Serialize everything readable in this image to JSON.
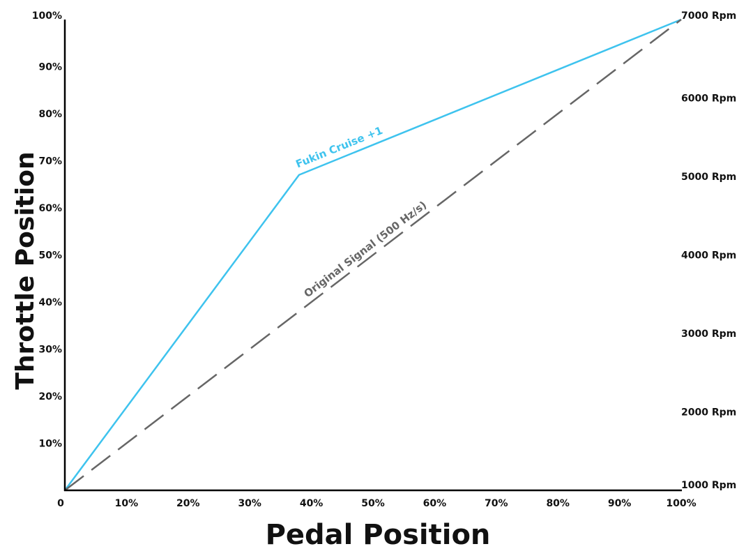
{
  "chart_data": {
    "type": "line",
    "title": "",
    "xlabel": "Pedal Position",
    "ylabel": "Throttle Position",
    "xlim": [
      0,
      100
    ],
    "ylim": [
      0,
      100
    ],
    "y2lim": [
      1000,
      7000
    ],
    "grid": false,
    "x_tick_labels": [
      "0",
      "10%",
      "20%",
      "30%",
      "40%",
      "50%",
      "60%",
      "70%",
      "80%",
      "90%",
      "100%"
    ],
    "x_tick_values": [
      0,
      10,
      20,
      30,
      40,
      50,
      60,
      70,
      80,
      90,
      100
    ],
    "y_tick_labels": [
      "10%",
      "20%",
      "30%",
      "40%",
      "50%",
      "60%",
      "70%",
      "80%",
      "90%",
      "100%"
    ],
    "y_tick_values": [
      10,
      20,
      30,
      40,
      50,
      60,
      70,
      80,
      90,
      100
    ],
    "y2_tick_labels": [
      "1000 Rpm",
      "2000 Rpm",
      "3000 Rpm",
      "4000 Rpm",
      "5000 Rpm",
      "6000 Rpm",
      "7000 Rpm"
    ],
    "y2_tick_values": [
      1000,
      2000,
      3000,
      4000,
      5000,
      6000,
      7000
    ],
    "series": [
      {
        "name": "Fukin Cruise +1",
        "color": "#3ec3ee",
        "style": "solid",
        "x": [
          0,
          38,
          100
        ],
        "y": [
          0,
          67,
          100
        ]
      },
      {
        "name": "Original Signal (500 Hz/s)",
        "color": "#666666",
        "style": "dashed",
        "x": [
          0,
          100
        ],
        "y": [
          0,
          100
        ]
      }
    ]
  }
}
